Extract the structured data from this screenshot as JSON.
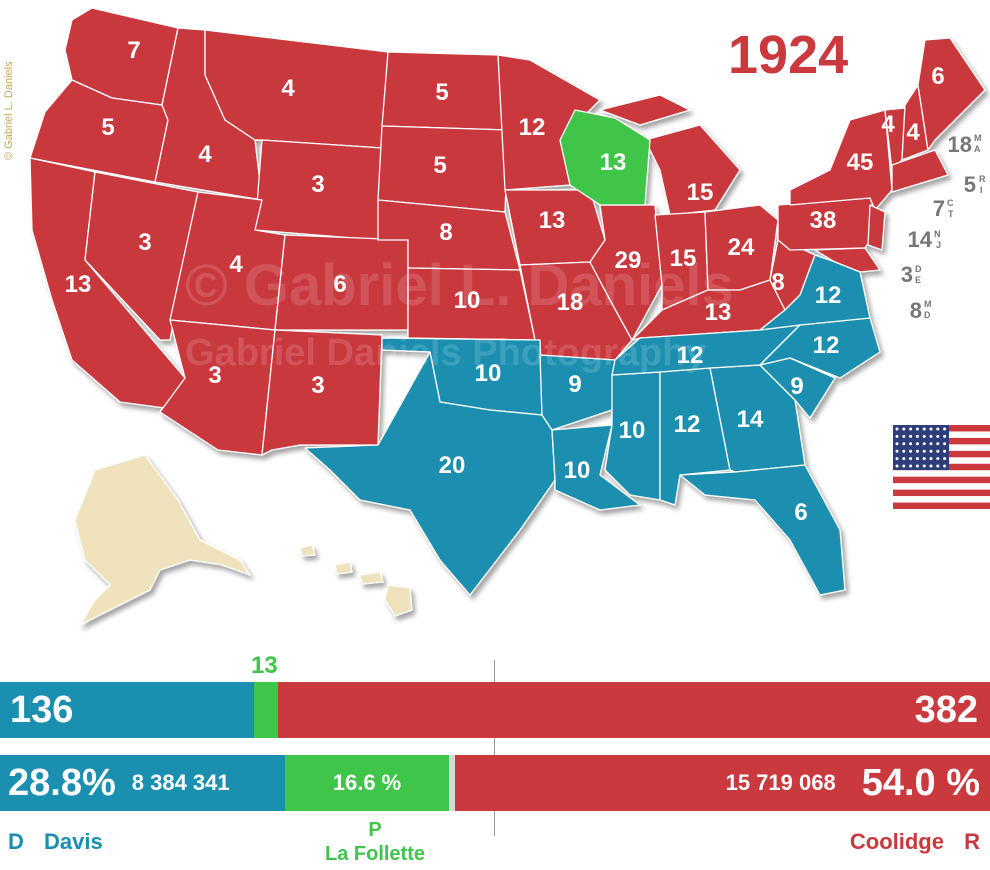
{
  "year": "1924",
  "credit": "© Gabriel L. Daniels",
  "watermark": {
    "line1": "© Gabriel L. Daniels",
    "line2": "Gabriel Daniels Photography"
  },
  "colors": {
    "republican": "#c9393d",
    "democrat": "#1b8fb0",
    "progressive": "#3fc54a",
    "territory": "#efe2bd"
  },
  "states": {
    "WA": "7",
    "OR": "5",
    "CA": "13",
    "ID": "4",
    "NV": "3",
    "MT": "4",
    "WY": "3",
    "UT": "4",
    "AZ": "3",
    "CO": "6",
    "NM": "3",
    "ND": "5",
    "SD": "5",
    "NE": "8",
    "KS": "10",
    "OK": "10",
    "TX": "20",
    "MN": "12",
    "IA": "13",
    "MO": "18",
    "AR": "9",
    "LA": "10",
    "WI": "13",
    "IL": "29",
    "MI": "15",
    "IN": "15",
    "OH": "24",
    "KY": "13",
    "TN": "12",
    "MS": "10",
    "AL": "12",
    "GA": "14",
    "FL": "6",
    "SC": "9",
    "NC": "12",
    "VA": "12",
    "WV": "8",
    "PA": "38",
    "NY": "45",
    "VT": "4",
    "NH": "4",
    "ME": "6"
  },
  "northeast_labels": [
    {
      "votes": "18",
      "abbr1": "M",
      "abbr2": "A"
    },
    {
      "votes": "5",
      "abbr1": "R",
      "abbr2": "I"
    },
    {
      "votes": "7",
      "abbr1": "C",
      "abbr2": "T"
    },
    {
      "votes": "14",
      "abbr1": "N",
      "abbr2": "J"
    },
    {
      "votes": "3",
      "abbr1": "D",
      "abbr2": "E"
    },
    {
      "votes": "8",
      "abbr1": "M",
      "abbr2": "D"
    }
  ],
  "electoral": {
    "davis": "136",
    "lafollette": "13",
    "coolidge": "382",
    "davis_frac": 0.2561,
    "lafollette_frac": 0.0245
  },
  "popular": {
    "davis_pct": "28.8%",
    "davis_votes": "8 384 341",
    "lafollette_pct": "16.6 %",
    "coolidge_votes": "15 719 068",
    "coolidge_pct": "54.0 %",
    "davis_frac": 0.288,
    "lafollette_frac": 0.166,
    "other_frac": 0.006
  },
  "candidates": {
    "davis_party": "D",
    "davis_name": "Davis",
    "lafollette_party": "P",
    "lafollette_name": "La Follette",
    "coolidge_name": "Coolidge",
    "coolidge_party": "R"
  }
}
